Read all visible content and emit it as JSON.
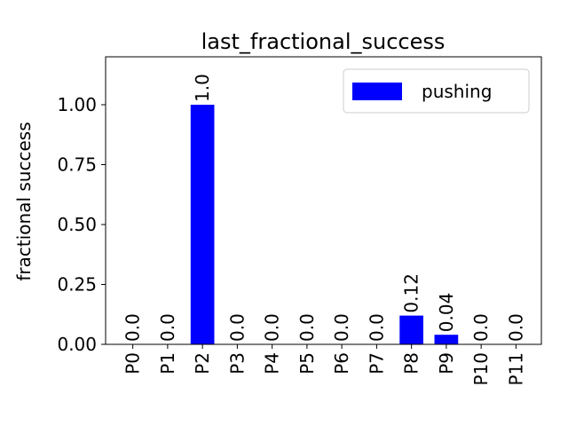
{
  "chart_data": {
    "type": "bar",
    "title": "last_fractional_success",
    "xlabel": "",
    "ylabel": "fractional success",
    "categories": [
      "P0",
      "P1",
      "P2",
      "P3",
      "P4",
      "P5",
      "P6",
      "P7",
      "P8",
      "P9",
      "P10",
      "P11"
    ],
    "series": [
      {
        "name": "pushing",
        "color": "#0000ff",
        "values": [
          0.0,
          0.0,
          1.0,
          0.0,
          0.0,
          0.0,
          0.0,
          0.0,
          0.12,
          0.04,
          0.0,
          0.0
        ],
        "value_labels": [
          "0.0",
          "0.0",
          "1.0",
          "0.0",
          "0.0",
          "0.0",
          "0.0",
          "0.0",
          "0.12",
          "0.04",
          "0.0",
          "0.0"
        ]
      }
    ],
    "ylim": [
      0,
      1.2
    ],
    "yticks": [
      0.0,
      0.25,
      0.5,
      0.75,
      1.0
    ],
    "ytick_labels": [
      "0.00",
      "0.25",
      "0.50",
      "0.75",
      "1.00"
    ],
    "grid": false,
    "legend": "top-right"
  }
}
